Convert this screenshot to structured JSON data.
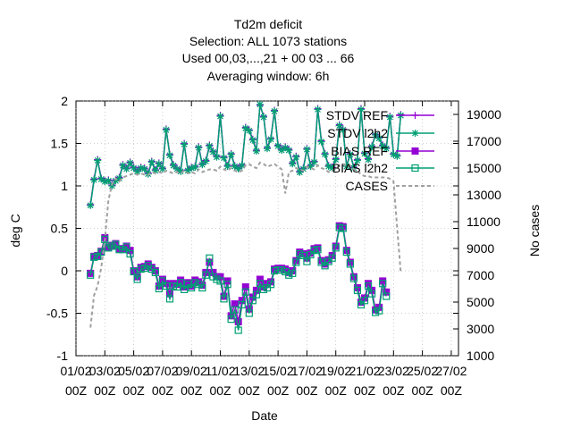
{
  "title_lines": [
    "Td2m deficit",
    "Selection: ALL   1073 stations",
    "Used  00,03,...,21  + 00 03 ... 66",
    "Averaging window:  6h"
  ],
  "colors": {
    "stdv_ref": "#9400d3",
    "stdv_l2h2": "#009e73",
    "bias_ref": "#9400d3",
    "bias_l2h2": "#009e73",
    "cases": "#a0a0a0"
  },
  "chart_data": {
    "type": "line",
    "title": "Td2m deficit",
    "xlabel": "Date",
    "ylabel": "deg C",
    "y2label": "No cases",
    "xlim": [
      0,
      26.5
    ],
    "ylim": [
      -1,
      2
    ],
    "y2lim": [
      1000,
      20000
    ],
    "x_tick_positions": [
      0,
      2,
      4,
      6,
      8,
      10,
      12,
      14,
      16,
      18,
      20,
      22,
      24,
      26
    ],
    "x_tick_labels": [
      [
        "01/02",
        "00Z"
      ],
      [
        "03/02",
        "00Z"
      ],
      [
        "05/02",
        "00Z"
      ],
      [
        "07/02",
        "00Z"
      ],
      [
        "09/02",
        "00Z"
      ],
      [
        "11/02",
        "00Z"
      ],
      [
        "13/02",
        "00Z"
      ],
      [
        "15/02",
        "00Z"
      ],
      [
        "17/02",
        "00Z"
      ],
      [
        "19/02",
        "00Z"
      ],
      [
        "21/02",
        "00Z"
      ],
      [
        "23/02",
        "00Z"
      ],
      [
        "25/02",
        "00Z"
      ],
      [
        "27/02",
        "00Z"
      ]
    ],
    "y_ticks": [
      -1,
      -0.5,
      0,
      0.5,
      1,
      1.5,
      2
    ],
    "y_tick_labels": [
      "-1",
      "-0.5",
      "0",
      "0.5",
      "1",
      "1.5",
      "2"
    ],
    "y2_ticks": [
      1000,
      3000,
      5000,
      7000,
      9000,
      11000,
      13000,
      15000,
      17000,
      19000
    ],
    "y2_tick_labels": [
      "1000",
      "3000",
      "5000",
      "7000",
      "9000",
      "11000",
      "13000",
      "15000",
      "17000",
      "19000"
    ],
    "grid": true,
    "legend_position": "top-right",
    "x_step_days": 0.25,
    "x_start": 1.0,
    "series": [
      {
        "name": "STDV REF",
        "axis": "y",
        "values": [
          0.78,
          1.08,
          1.31,
          1.09,
          1.06,
          1.07,
          1.01,
          1.07,
          1.1,
          1.25,
          1.21,
          1.28,
          1.22,
          1.18,
          1.22,
          1.21,
          1.15,
          1.29,
          1.19,
          1.27,
          1.21,
          1.67,
          1.37,
          1.25,
          1.21,
          1.18,
          1.5,
          1.19,
          1.22,
          1.23,
          1.46,
          1.26,
          1.3,
          1.48,
          1.41,
          1.35,
          1.83,
          1.34,
          1.24,
          1.38,
          1.24,
          1.21,
          1.25,
          1.69,
          1.66,
          1.55,
          1.42,
          1.95,
          1.82,
          1.45,
          1.56,
          1.89,
          1.48,
          1.43,
          1.46,
          1.43,
          1.27,
          1.35,
          1.17,
          1.21,
          1.44,
          1.24,
          1.29,
          1.91,
          1.53,
          1.38,
          1.24,
          1.22,
          1.32,
          1.72,
          1.67,
          1.24,
          1.38,
          1.22,
          1.31,
          1.91,
          1.39,
          1.32,
          1.47,
          1.61,
          1.57,
          1.48,
          1.45,
          1.82,
          1.38,
          1.36,
          1.84
        ]
      },
      {
        "name": "STDV l2h2",
        "axis": "y",
        "values": [
          0.77,
          1.07,
          1.3,
          1.08,
          1.05,
          1.06,
          1.0,
          1.06,
          1.09,
          1.24,
          1.2,
          1.27,
          1.21,
          1.17,
          1.21,
          1.2,
          1.14,
          1.28,
          1.18,
          1.26,
          1.2,
          1.66,
          1.36,
          1.24,
          1.2,
          1.17,
          1.49,
          1.18,
          1.21,
          1.22,
          1.45,
          1.25,
          1.29,
          1.47,
          1.4,
          1.34,
          1.82,
          1.33,
          1.23,
          1.37,
          1.23,
          1.2,
          1.24,
          1.68,
          1.65,
          1.54,
          1.41,
          1.96,
          1.81,
          1.44,
          1.55,
          1.88,
          1.47,
          1.42,
          1.45,
          1.42,
          1.26,
          1.34,
          1.16,
          1.2,
          1.43,
          1.23,
          1.28,
          1.9,
          1.52,
          1.37,
          1.23,
          1.21,
          1.31,
          1.71,
          1.66,
          1.23,
          1.37,
          1.21,
          1.3,
          1.9,
          1.38,
          1.31,
          1.46,
          1.6,
          1.56,
          1.47,
          1.44,
          1.81,
          1.37,
          1.35,
          1.83
        ]
      },
      {
        "name": "BIAS REF",
        "axis": "y",
        "values": [
          -0.03,
          0.17,
          0.18,
          0.23,
          0.39,
          0.28,
          0.3,
          0.32,
          0.26,
          0.26,
          0.29,
          0.24,
          0.0,
          -0.07,
          0.04,
          0.05,
          0.08,
          0.04,
          0.0,
          -0.18,
          -0.1,
          -0.15,
          -0.27,
          -0.15,
          -0.16,
          -0.11,
          -0.19,
          -0.14,
          -0.18,
          -0.11,
          -0.13,
          -0.17,
          -0.02,
          0.1,
          -0.02,
          -0.07,
          -0.07,
          -0.3,
          -0.12,
          -0.53,
          -0.39,
          -0.6,
          -0.35,
          -0.19,
          -0.45,
          -0.31,
          -0.23,
          -0.1,
          -0.19,
          -0.15,
          -0.13,
          0.02,
          0.03,
          0.03,
          0.02,
          -0.02,
          0.0,
          0.12,
          0.22,
          0.2,
          0.15,
          0.21,
          0.26,
          0.27,
          0.12,
          0.08,
          0.13,
          0.18,
          0.29,
          0.53,
          0.52,
          0.24,
          0.1,
          -0.07,
          -0.2,
          -0.37,
          -0.32,
          -0.15,
          -0.23,
          -0.46,
          -0.43,
          -0.12,
          -0.25
        ]
      },
      {
        "name": "BIAS l2h2",
        "axis": "y",
        "values": [
          -0.05,
          0.16,
          0.17,
          0.22,
          0.37,
          0.27,
          0.29,
          0.31,
          0.25,
          0.25,
          0.28,
          0.2,
          -0.01,
          -0.1,
          0.02,
          0.03,
          0.06,
          0.02,
          -0.02,
          -0.21,
          -0.12,
          -0.18,
          -0.33,
          -0.18,
          -0.19,
          -0.14,
          -0.22,
          -0.16,
          -0.2,
          -0.14,
          -0.16,
          -0.2,
          -0.05,
          0.15,
          -0.07,
          -0.1,
          -0.12,
          -0.33,
          -0.16,
          -0.57,
          -0.46,
          -0.7,
          -0.4,
          -0.25,
          -0.5,
          -0.35,
          -0.28,
          -0.15,
          -0.22,
          -0.2,
          -0.16,
          0.0,
          0.01,
          0.01,
          -0.01,
          -0.05,
          -0.03,
          0.1,
          0.2,
          0.18,
          0.11,
          0.19,
          0.24,
          0.25,
          0.1,
          0.06,
          0.11,
          0.15,
          0.27,
          0.51,
          0.5,
          0.22,
          0.08,
          -0.09,
          -0.23,
          -0.4,
          -0.35,
          -0.18,
          -0.27,
          -0.49,
          -0.47,
          -0.15,
          -0.3
        ]
      },
      {
        "name": "CASES",
        "axis": "y2",
        "values": [
          3100,
          5500,
          6200,
          7600,
          9600,
          12600,
          13800,
          14200,
          14000,
          14300,
          14400,
          14500,
          14600,
          14500,
          14600,
          14500,
          14500,
          14700,
          14600,
          14700,
          14600,
          14800,
          14700,
          14600,
          14700,
          14600,
          14800,
          14600,
          14700,
          14600,
          14900,
          14700,
          14800,
          14900,
          14900,
          14800,
          15100,
          14900,
          14800,
          15000,
          14800,
          14700,
          14800,
          15200,
          15300,
          15100,
          15000,
          15400,
          15300,
          15100,
          15200,
          15300,
          15100,
          14900,
          13100,
          14700,
          14800,
          15000,
          14900,
          14800,
          15100,
          15000,
          14900,
          15200,
          15000,
          14900,
          14700,
          14800,
          15000,
          15200,
          15300,
          15100,
          15200,
          14900,
          14800,
          14500,
          14400,
          14400,
          14300,
          14300,
          14300,
          14300,
          14300,
          14200,
          14000,
          10500,
          7200
        ]
      }
    ],
    "legend": [
      {
        "label": "STDV REF",
        "series": 0
      },
      {
        "label": "STDV l2h2",
        "series": 1
      },
      {
        "label": "BIAS REF",
        "series": 2
      },
      {
        "label": "BIAS l2h2",
        "series": 3
      },
      {
        "label": "CASES",
        "series": 4
      }
    ]
  }
}
